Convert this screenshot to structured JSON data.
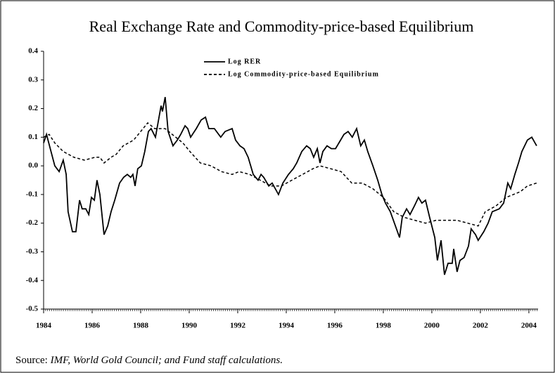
{
  "chart_data": {
    "type": "line",
    "title": "Real Exchange Rate and Commodity-price-based Equilibrium",
    "source_label": "Source: ",
    "source": "IMF, World Gold Council; and Fund staff calculations.",
    "xlim": [
      1984,
      2004.38
    ],
    "xticks": [
      1984,
      1986,
      1988,
      1990,
      1992,
      1994,
      1996,
      1998,
      2000,
      2002,
      2004
    ],
    "ylim": [
      -0.5,
      0.4
    ],
    "yticks": [
      0.4,
      0.3,
      0.2,
      0.1,
      {
        "value": 0,
        "label": "0.0"
      },
      -0.1,
      -0.2,
      -0.3,
      -0.4,
      -0.5
    ],
    "grid": false,
    "legend": "top-center",
    "series": [
      {
        "name": "Log RER",
        "color": "#000000",
        "dash": false,
        "x": [
          1984.0,
          1984.12,
          1984.46,
          1984.64,
          1984.81,
          1984.93,
          1985.01,
          1985.19,
          1985.33,
          1985.48,
          1985.59,
          1985.74,
          1985.86,
          1985.97,
          1986.09,
          1986.2,
          1986.32,
          1986.49,
          1986.64,
          1986.78,
          1986.93,
          1987.13,
          1987.3,
          1987.45,
          1987.59,
          1987.68,
          1987.77,
          1987.88,
          1988.03,
          1988.17,
          1988.32,
          1988.43,
          1988.61,
          1988.84,
          1988.9,
          1989.01,
          1989.13,
          1989.33,
          1989.51,
          1989.65,
          1989.83,
          1989.94,
          1990.06,
          1990.29,
          1990.49,
          1990.67,
          1990.81,
          1991.04,
          1991.3,
          1991.48,
          1991.77,
          1991.91,
          1992.09,
          1992.26,
          1992.43,
          1992.64,
          1992.84,
          1992.96,
          1993.07,
          1993.28,
          1993.42,
          1993.68,
          1993.86,
          1994.09,
          1994.29,
          1994.43,
          1994.64,
          1994.84,
          1994.99,
          1995.13,
          1995.28,
          1995.39,
          1995.51,
          1995.68,
          1995.86,
          1996.03,
          1996.17,
          1996.38,
          1996.55,
          1996.72,
          1996.9,
          1997.07,
          1997.22,
          1997.36,
          1997.57,
          1997.77,
          1997.94,
          1998.09,
          1998.29,
          1998.67,
          1998.78,
          1998.96,
          1999.1,
          1999.28,
          1999.45,
          1999.59,
          1999.74,
          1999.91,
          2000.12,
          2000.23,
          2000.38,
          2000.52,
          2000.67,
          2000.84,
          2000.9,
          2001.04,
          2001.16,
          2001.33,
          2001.51,
          2001.62,
          2001.8,
          2001.91,
          2002.14,
          2002.32,
          2002.49,
          2002.78,
          2002.96,
          2003.13,
          2003.25,
          2003.42,
          2003.57,
          2003.71,
          2003.94,
          2004.12,
          2004.32
        ],
        "values": [
          0.08,
          0.11,
          0.0,
          -0.02,
          0.02,
          -0.03,
          -0.16,
          -0.23,
          -0.23,
          -0.12,
          -0.15,
          -0.15,
          -0.17,
          -0.11,
          -0.12,
          -0.05,
          -0.1,
          -0.24,
          -0.21,
          -0.16,
          -0.12,
          -0.06,
          -0.04,
          -0.03,
          -0.04,
          -0.03,
          -0.07,
          -0.01,
          0.0,
          0.05,
          0.12,
          0.13,
          0.1,
          0.21,
          0.19,
          0.24,
          0.12,
          0.07,
          0.09,
          0.11,
          0.14,
          0.13,
          0.1,
          0.13,
          0.16,
          0.17,
          0.13,
          0.13,
          0.1,
          0.12,
          0.13,
          0.09,
          0.07,
          0.06,
          0.03,
          -0.03,
          -0.05,
          -0.03,
          -0.04,
          -0.07,
          -0.06,
          -0.1,
          -0.06,
          -0.03,
          -0.01,
          0.01,
          0.05,
          0.07,
          0.06,
          0.03,
          0.06,
          0.01,
          0.05,
          0.07,
          0.06,
          0.06,
          0.08,
          0.11,
          0.12,
          0.1,
          0.13,
          0.07,
          0.09,
          0.05,
          0.0,
          -0.05,
          -0.1,
          -0.13,
          -0.16,
          -0.25,
          -0.18,
          -0.15,
          -0.17,
          -0.14,
          -0.11,
          -0.13,
          -0.12,
          -0.18,
          -0.25,
          -0.33,
          -0.26,
          -0.38,
          -0.34,
          -0.34,
          -0.29,
          -0.37,
          -0.33,
          -0.32,
          -0.28,
          -0.22,
          -0.24,
          -0.26,
          -0.23,
          -0.2,
          -0.16,
          -0.15,
          -0.13,
          -0.06,
          -0.08,
          -0.03,
          0.01,
          0.05,
          0.09,
          0.1,
          0.07
        ]
      },
      {
        "name": "Log Commodity-price-based Equilibrium",
        "color": "#000000",
        "dash": true,
        "x": [
          1984.0,
          1984.23,
          1984.46,
          1984.81,
          1985.25,
          1985.68,
          1986.12,
          1986.32,
          1986.49,
          1986.78,
          1986.99,
          1987.28,
          1987.71,
          1988.0,
          1988.29,
          1988.58,
          1989.01,
          1989.3,
          1989.74,
          1990.03,
          1990.46,
          1990.9,
          1991.33,
          1991.77,
          1992.06,
          1992.49,
          1992.93,
          1993.36,
          1993.8,
          1994.23,
          1994.67,
          1995.1,
          1995.39,
          1995.83,
          1996.26,
          1996.7,
          1997.13,
          1997.57,
          1998.0,
          1998.43,
          1998.87,
          1999.3,
          1999.74,
          2000.17,
          2000.61,
          2001.04,
          2001.48,
          2001.91,
          2002.2,
          2002.64,
          2003.07,
          2003.65,
          2003.94,
          2004.32
        ],
        "values": [
          0.1,
          0.11,
          0.08,
          0.05,
          0.03,
          0.02,
          0.03,
          0.03,
          0.01,
          0.03,
          0.04,
          0.07,
          0.09,
          0.12,
          0.15,
          0.13,
          0.13,
          0.11,
          0.08,
          0.05,
          0.01,
          0.0,
          -0.02,
          -0.03,
          -0.02,
          -0.03,
          -0.05,
          -0.07,
          -0.07,
          -0.05,
          -0.03,
          -0.01,
          0.0,
          -0.01,
          -0.02,
          -0.06,
          -0.06,
          -0.08,
          -0.11,
          -0.16,
          -0.18,
          -0.19,
          -0.2,
          -0.19,
          -0.19,
          -0.19,
          -0.2,
          -0.21,
          -0.16,
          -0.14,
          -0.11,
          -0.09,
          -0.07,
          -0.06
        ]
      }
    ]
  }
}
